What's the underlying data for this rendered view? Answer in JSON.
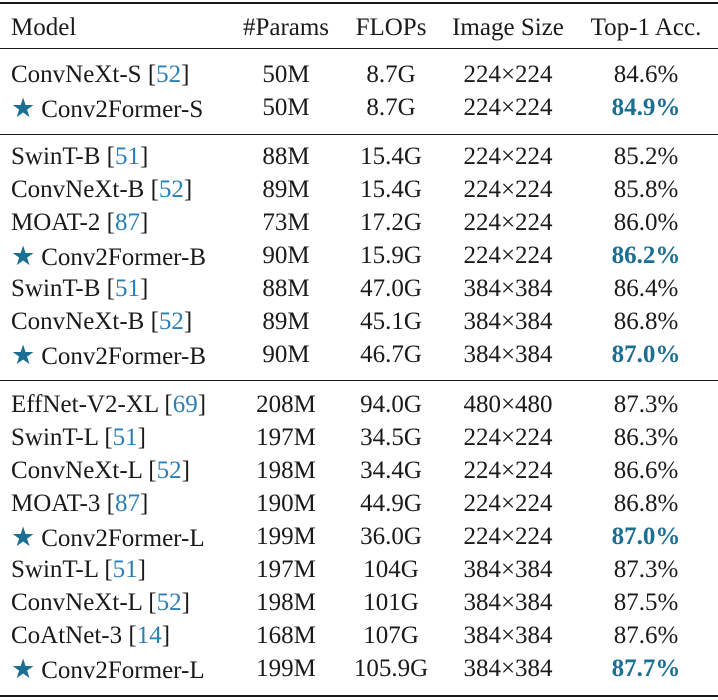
{
  "header": {
    "model": "Model",
    "params": "#Params",
    "flops": "FLOPs",
    "image_size": "Image Size",
    "top1": "Top-1 Acc."
  },
  "rows": [
    {
      "name": "ConvNeXt-S",
      "cite": "52",
      "params": "50M",
      "flops": "8.7G",
      "img": "224×224",
      "acc": "84.6%",
      "ours": false
    },
    {
      "name": "Conv2Former-S",
      "cite": "",
      "params": "50M",
      "flops": "8.7G",
      "img": "224×224",
      "acc": "84.9%",
      "ours": true
    },
    {
      "name": "SwinT-B",
      "cite": "51",
      "params": "88M",
      "flops": "15.4G",
      "img": "224×224",
      "acc": "85.2%",
      "ours": false
    },
    {
      "name": "ConvNeXt-B",
      "cite": "52",
      "params": "89M",
      "flops": "15.4G",
      "img": "224×224",
      "acc": "85.8%",
      "ours": false
    },
    {
      "name": "MOAT-2",
      "cite": "87",
      "params": "73M",
      "flops": "17.2G",
      "img": "224×224",
      "acc": "86.0%",
      "ours": false
    },
    {
      "name": "Conv2Former-B",
      "cite": "",
      "params": "90M",
      "flops": "15.9G",
      "img": "224×224",
      "acc": "86.2%",
      "ours": true
    },
    {
      "name": "SwinT-B",
      "cite": "51",
      "params": "88M",
      "flops": "47.0G",
      "img": "384×384",
      "acc": "86.4%",
      "ours": false
    },
    {
      "name": "ConvNeXt-B",
      "cite": "52",
      "params": "89M",
      "flops": "45.1G",
      "img": "384×384",
      "acc": "86.8%",
      "ours": false
    },
    {
      "name": "Conv2Former-B",
      "cite": "",
      "params": "90M",
      "flops": "46.7G",
      "img": "384×384",
      "acc": "87.0%",
      "ours": true
    },
    {
      "name": "EffNet-V2-XL",
      "cite": "69",
      "params": "208M",
      "flops": "94.0G",
      "img": "480×480",
      "acc": "87.3%",
      "ours": false
    },
    {
      "name": "SwinT-L",
      "cite": "51",
      "params": "197M",
      "flops": "34.5G",
      "img": "224×224",
      "acc": "86.3%",
      "ours": false
    },
    {
      "name": "ConvNeXt-L",
      "cite": "52",
      "params": "198M",
      "flops": "34.4G",
      "img": "224×224",
      "acc": "86.6%",
      "ours": false
    },
    {
      "name": "MOAT-3",
      "cite": "87",
      "params": "190M",
      "flops": "44.9G",
      "img": "224×224",
      "acc": "86.8%",
      "ours": false
    },
    {
      "name": "Conv2Former-L",
      "cite": "",
      "params": "199M",
      "flops": "36.0G",
      "img": "224×224",
      "acc": "87.0%",
      "ours": true
    },
    {
      "name": "SwinT-L",
      "cite": "51",
      "params": "197M",
      "flops": "104G",
      "img": "384×384",
      "acc": "87.3%",
      "ours": false
    },
    {
      "name": "ConvNeXt-L",
      "cite": "52",
      "params": "198M",
      "flops": "101G",
      "img": "384×384",
      "acc": "87.5%",
      "ours": false
    },
    {
      "name": "CoAtNet-3",
      "cite": "14",
      "params": "168M",
      "flops": "107G",
      "img": "384×384",
      "acc": "87.6%",
      "ours": false
    },
    {
      "name": "Conv2Former-L",
      "cite": "",
      "params": "199M",
      "flops": "105.9G",
      "img": "384×384",
      "acc": "87.7%",
      "ours": true
    }
  ]
}
